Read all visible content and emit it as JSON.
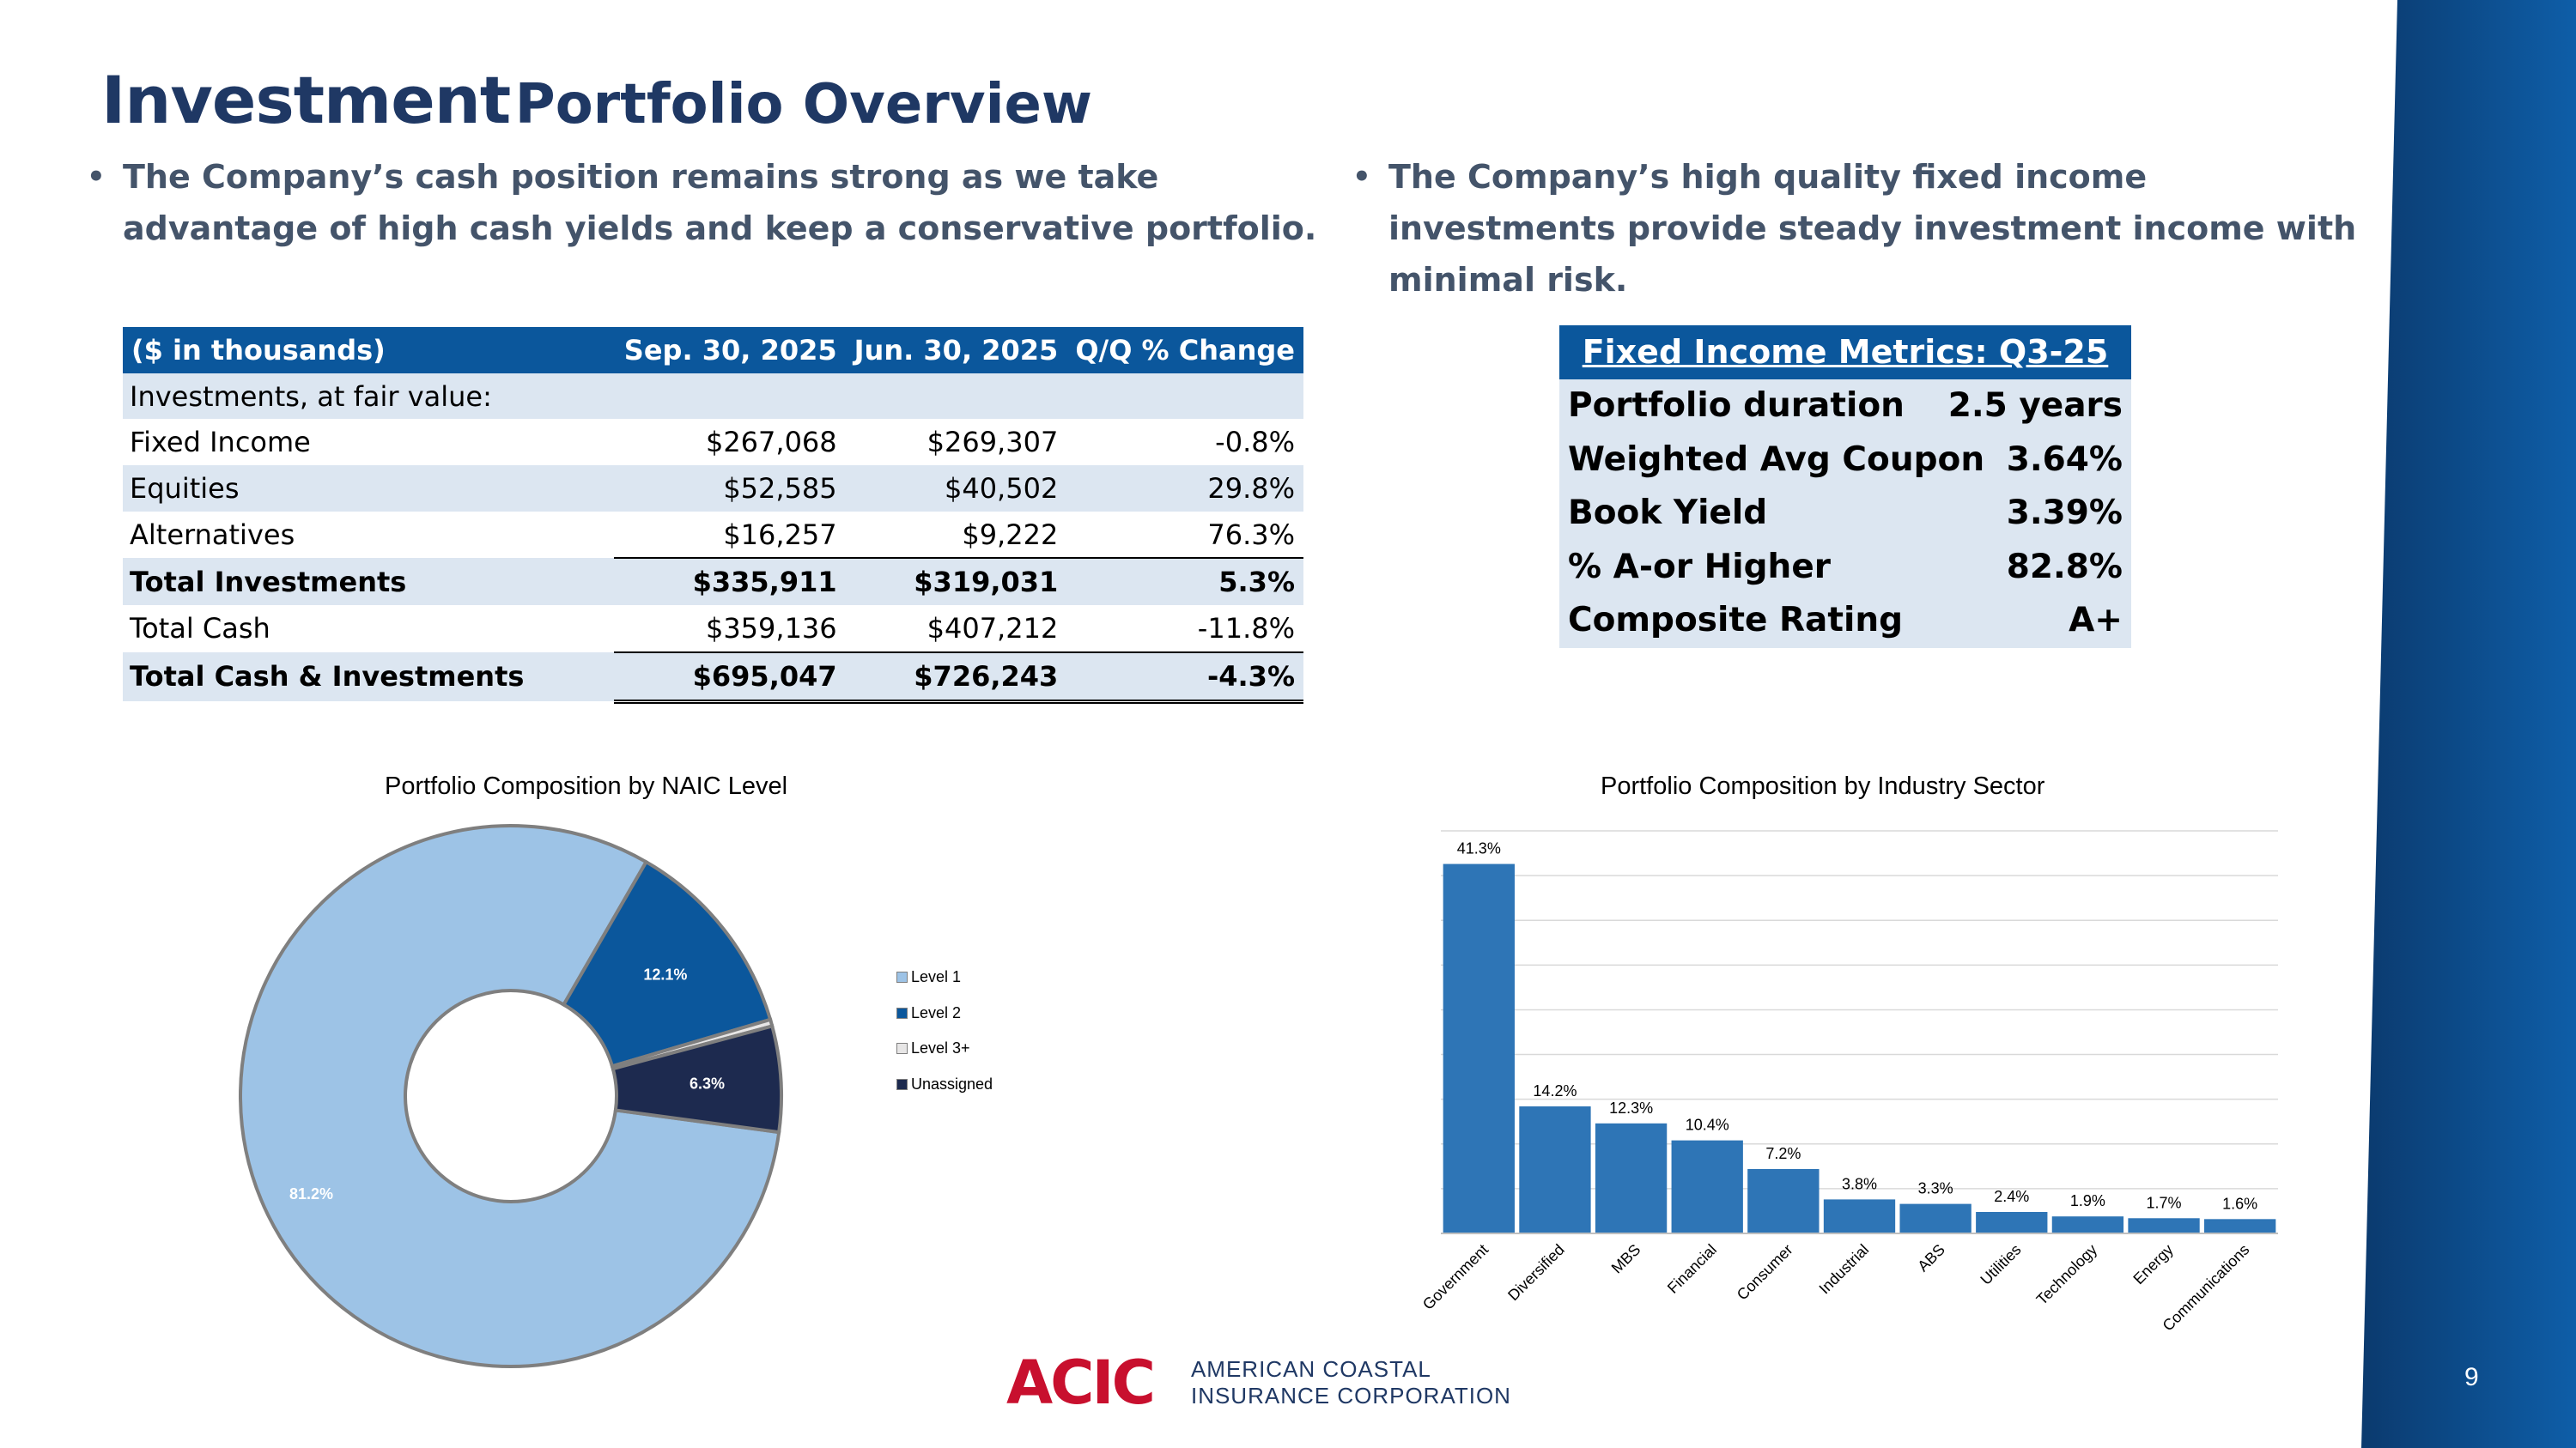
{
  "slide": {
    "title_big": "Investment",
    "title_rest": "Portfolio Overview",
    "bullet_left": "The Company’s cash position remains strong as we take advantage of high cash yields and keep a conservative portfolio.",
    "bullet_right": "The Company’s high quality fixed income investments provide steady investment income with minimal risk.",
    "bullet_symbol": "•",
    "page_number": "9",
    "brand_accent": "#1f3864",
    "band_color": "#0b4f8f"
  },
  "investments_table": {
    "headers": [
      "($ in thousands)",
      "Sep. 30, 2025",
      "Jun. 30, 2025",
      "Q/Q % Change"
    ],
    "section_label": "Investments, at fair value:",
    "rows": [
      {
        "label": "Fixed Income",
        "sep": "$267,068",
        "jun": "$269,307",
        "chg": "-0.8%"
      },
      {
        "label": "Equities",
        "sep": "$52,585",
        "jun": "$40,502",
        "chg": "29.8%"
      },
      {
        "label": "Alternatives",
        "sep": "$16,257",
        "jun": "$9,222",
        "chg": "76.3%"
      },
      {
        "label": "Total Investments",
        "sep": "$335,911",
        "jun": "$319,031",
        "chg": "5.3%"
      },
      {
        "label": "Total Cash",
        "sep": "$359,136",
        "jun": "$407,212",
        "chg": "-11.8%"
      },
      {
        "label": "Total Cash & Investments",
        "sep": "$695,047",
        "jun": "$726,243",
        "chg": "-4.3%"
      }
    ]
  },
  "fixed_income_metrics": {
    "title": "Fixed Income Metrics: Q3-25",
    "rows": [
      {
        "label": "Portfolio duration",
        "value": "2.5 years"
      },
      {
        "label": "Weighted Avg Coupon",
        "value": "3.64%"
      },
      {
        "label": "Book Yield",
        "value": "3.39%"
      },
      {
        "label": "% A-or Higher",
        "value": "82.8%"
      },
      {
        "label": "Composite Rating",
        "value": "A+"
      }
    ]
  },
  "chart_data": [
    {
      "type": "pie",
      "title": "Portfolio Composition by NAIC Level",
      "categories": [
        "Level 1",
        "Level 2",
        "Level 3+",
        "Unassigned"
      ],
      "values": [
        81.2,
        12.1,
        0.4,
        6.3
      ],
      "data_labels": [
        "81.2%",
        "12.1%",
        "",
        "6.3%"
      ],
      "colors": [
        "#9dc3e6",
        "#0b579c",
        "#e7e6e6",
        "#1d2a4f"
      ],
      "legend": "right",
      "donut": true
    },
    {
      "type": "bar",
      "title": "Portfolio Composition by Industry Sector",
      "categories": [
        "Government",
        "Diversified",
        "MBS",
        "Financial",
        "Consumer",
        "Industrial",
        "ABS",
        "Utilities",
        "Technology",
        "Energy",
        "Communications"
      ],
      "values": [
        41.3,
        14.2,
        12.3,
        10.4,
        7.2,
        3.8,
        3.3,
        2.4,
        1.9,
        1.7,
        1.6
      ],
      "data_labels": [
        "41.3%",
        "14.2%",
        "12.3%",
        "10.4%",
        "7.2%",
        "3.8%",
        "3.3%",
        "2.4%",
        "1.9%",
        "1.7%",
        "1.6%"
      ],
      "ylim": [
        0,
        45
      ],
      "grid": true,
      "bar_color": "#2e75b6",
      "xlabel": "",
      "ylabel": ""
    }
  ],
  "logo": {
    "mark": "ACIC",
    "name_line1": "AMERICAN COASTAL",
    "name_line2": "INSURANCE CORPORATION"
  }
}
